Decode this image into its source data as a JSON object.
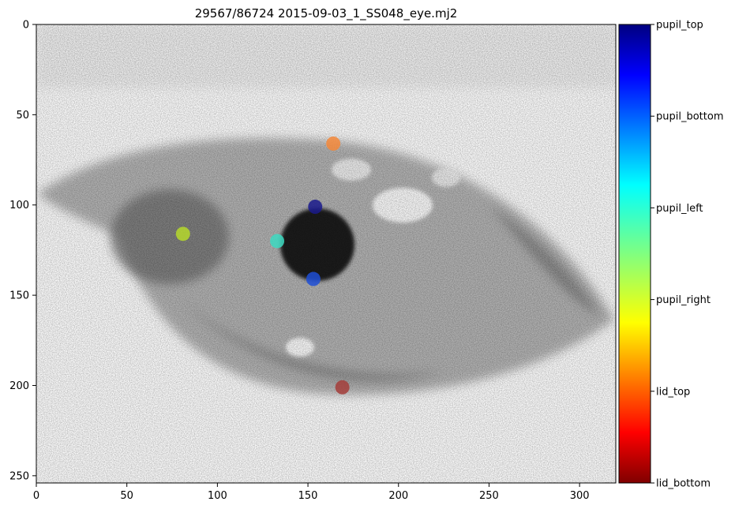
{
  "title": "29567/86724 2015-09-03_1_SS048_eye.mj2",
  "chart_data": {
    "type": "scatter",
    "title": "29567/86724 2015-09-03_1_SS048_eye.mj2",
    "background": "grayscale eye video frame",
    "xlabel": "",
    "ylabel": "",
    "xlim": [
      0,
      320
    ],
    "ylim": [
      254,
      0
    ],
    "xticks": [
      0,
      50,
      100,
      150,
      200,
      250,
      300
    ],
    "yticks": [
      0,
      50,
      100,
      150,
      200,
      250
    ],
    "points": [
      {
        "label": "pupil_top",
        "x": 154,
        "y": 101,
        "color": "#1a1a8c"
      },
      {
        "label": "pupil_bottom",
        "x": 153,
        "y": 141,
        "color": "#1f4fd6"
      },
      {
        "label": "pupil_left",
        "x": 133,
        "y": 120,
        "color": "#3dd9c1"
      },
      {
        "label": "pupil_right",
        "x": 81,
        "y": 116,
        "color": "#b5d82b"
      },
      {
        "label": "lid_top",
        "x": 164,
        "y": 66,
        "color": "#f5883a"
      },
      {
        "label": "lid_bottom",
        "x": 169,
        "y": 201,
        "color": "#a33d3a"
      }
    ],
    "colorbar": {
      "colormap": "jet",
      "labels": [
        "pupil_top",
        "pupil_bottom",
        "pupil_left",
        "pupil_right",
        "lid_top",
        "lid_bottom"
      ]
    }
  }
}
